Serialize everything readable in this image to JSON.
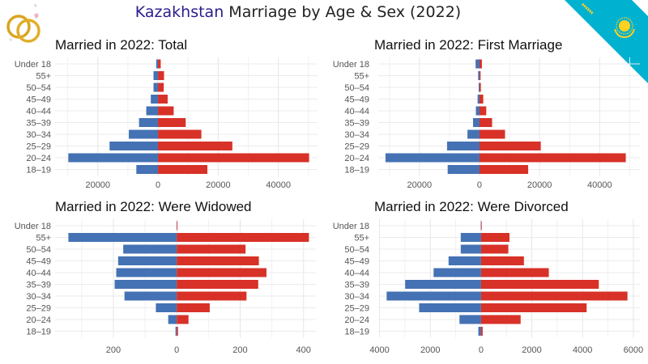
{
  "title": {
    "highlight": "Kazakhstan",
    "rest": "Marriage by Age & Sex (2022)"
  },
  "icons": {
    "logo": "wedding-rings-icon",
    "flag": "kazakhstan-flag-ribbon"
  },
  "colors": {
    "left_bars": "#4472b4",
    "right_bars": "#d83127",
    "title_highlight": "#2a1d8f",
    "flag": "#00b1d0",
    "flag_emblem": "#ffd21f"
  },
  "chart_data": [
    {
      "type": "bar",
      "orientation": "horizontal",
      "style": "population-pyramid",
      "title": "Married in 2022: Total",
      "categories": [
        "Under 18",
        "55+",
        "50–54",
        "45–49",
        "40–44",
        "35–39",
        "30–34",
        "25–29",
        "20–24",
        "18–19"
      ],
      "series": [
        {
          "side": "left",
          "values": [
            600,
            1500,
            1500,
            2400,
            3900,
            6300,
            9700,
            16100,
            29800,
            7200
          ]
        },
        {
          "side": "right",
          "values": [
            900,
            2000,
            1900,
            3200,
            5200,
            9200,
            14400,
            24700,
            50200,
            16400
          ]
        }
      ],
      "xlim": [
        -34200,
        53000
      ],
      "xticks": [
        -20000,
        0,
        20000,
        40000
      ],
      "xtick_labels": [
        "20000",
        "0",
        "20000",
        "40000"
      ],
      "grid": true
    },
    {
      "type": "bar",
      "orientation": "horizontal",
      "style": "population-pyramid",
      "title": "Married in 2022: First Marriage",
      "categories": [
        "Under 18",
        "55+",
        "50–54",
        "45–49",
        "40–44",
        "35–39",
        "30–34",
        "25–29",
        "20–24",
        "18–19"
      ],
      "series": [
        {
          "side": "left",
          "values": [
            1300,
            450,
            270,
            630,
            1200,
            2150,
            4000,
            10800,
            31300,
            10600
          ]
        },
        {
          "side": "right",
          "values": [
            800,
            360,
            450,
            1250,
            2250,
            4200,
            8500,
            20400,
            48700,
            16200
          ]
        }
      ],
      "xlim": [
        -33700,
        53400
      ],
      "xticks": [
        -20000,
        0,
        20000,
        40000
      ],
      "xtick_labels": [
        "20000",
        "0",
        "20000",
        "40000"
      ],
      "grid": true
    },
    {
      "type": "bar",
      "orientation": "horizontal",
      "style": "population-pyramid",
      "title": "Married in 2022: Were Widowed",
      "categories": [
        "Under 18",
        "55+",
        "50–54",
        "45–49",
        "40–44",
        "35–39",
        "30–34",
        "25–29",
        "20–24",
        "18–19"
      ],
      "series": [
        {
          "side": "left",
          "values": [
            0,
            342,
            169,
            185,
            191,
            196,
            165,
            66,
            27,
            4
          ]
        },
        {
          "side": "right",
          "values": [
            2,
            417,
            217,
            259,
            283,
            257,
            220,
            104,
            37,
            4
          ]
        }
      ],
      "xlim": [
        -384,
        439
      ],
      "xticks": [
        -200,
        0,
        200,
        400
      ],
      "xtick_labels": [
        "200",
        "0",
        "200",
        "400"
      ],
      "grid": true
    },
    {
      "type": "bar",
      "orientation": "horizontal",
      "style": "population-pyramid",
      "title": "Married in 2022: Were Divorced",
      "categories": [
        "Under 18",
        "55+",
        "50–54",
        "45–49",
        "40–44",
        "35–39",
        "30–34",
        "25–29",
        "20–24",
        "18–19"
      ],
      "series": [
        {
          "side": "left",
          "values": [
            10,
            800,
            800,
            1280,
            1870,
            2990,
            3720,
            2440,
            850,
            106
          ]
        },
        {
          "side": "right",
          "values": [
            10,
            1120,
            1075,
            1690,
            2670,
            4640,
            5770,
            4160,
            1560,
            64
          ]
        }
      ],
      "xlim": [
        -4050,
        6260
      ],
      "xticks": [
        -4000,
        -2000,
        0,
        2000,
        4000,
        6000
      ],
      "xtick_labels": [
        "4000",
        "2000",
        "0",
        "2000",
        "4000",
        "6000"
      ],
      "grid": true
    }
  ]
}
